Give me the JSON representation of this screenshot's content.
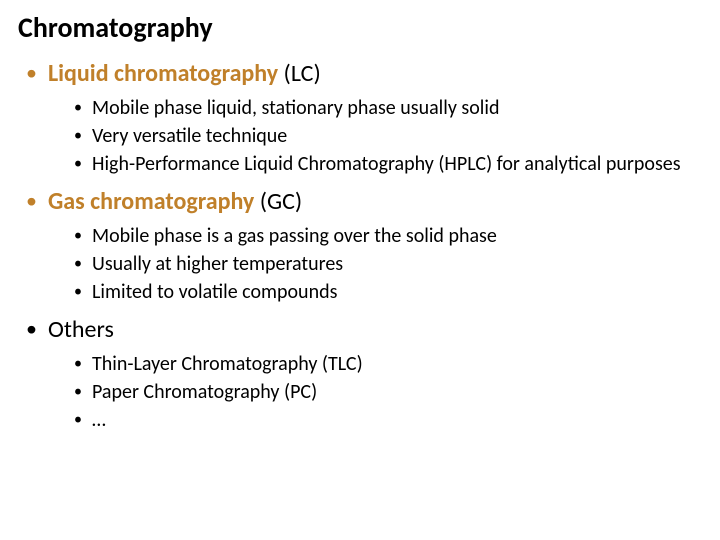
{
  "title": "Chromatography",
  "colors": {
    "accent": "#c0802a",
    "text": "#000000",
    "background": "#ffffff"
  },
  "typography": {
    "title_fontsize": 28,
    "level1_fontsize": 24,
    "level2_fontsize": 20,
    "font_family": "Calibri"
  },
  "sections": [
    {
      "heading_bold": "Liquid chromatography",
      "heading_suffix": " (LC)",
      "accent": true,
      "items": [
        "Mobile phase liquid, stationary phase usually solid",
        "Very versatile technique",
        "High-Performance Liquid Chromatography (HPLC) for analytical purposes"
      ]
    },
    {
      "heading_bold": "Gas chromatography",
      "heading_suffix": " (GC)",
      "accent": true,
      "items": [
        "Mobile phase is a gas passing over the solid phase",
        "Usually at higher temperatures",
        "Limited to volatile compounds"
      ]
    },
    {
      "heading_bold": "Others",
      "heading_suffix": "",
      "accent": false,
      "items": [
        "Thin-Layer Chromatography (TLC)",
        "Paper Chromatography (PC)",
        "…"
      ]
    }
  ]
}
